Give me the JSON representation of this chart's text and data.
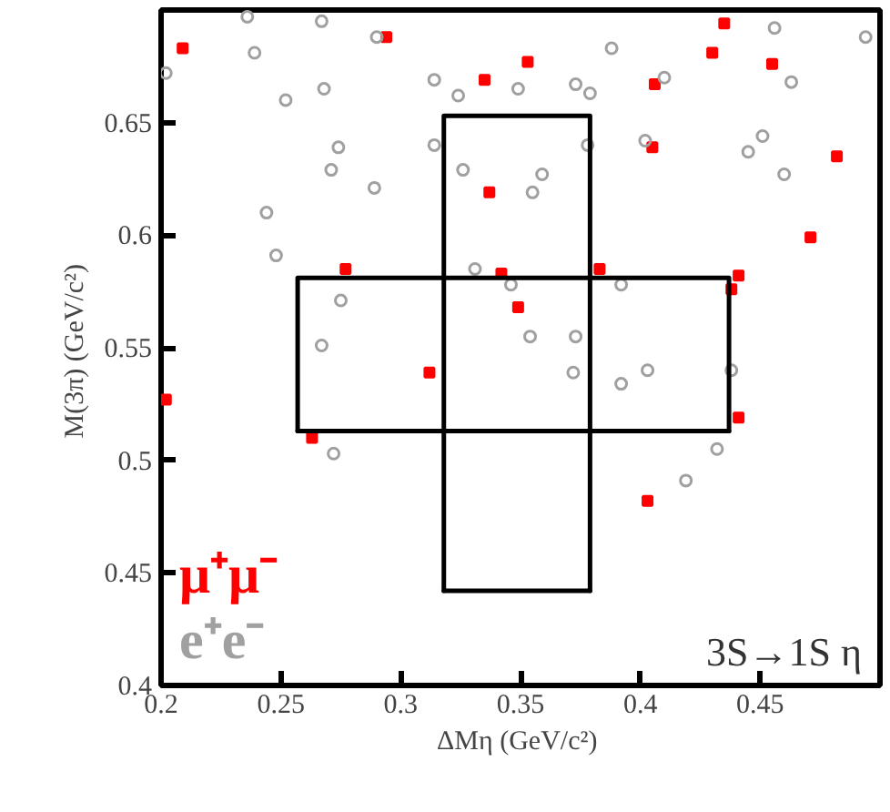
{
  "chart_data": {
    "type": "scatter",
    "xlabel": "ΔMη  (GeV/c²)",
    "ylabel": "M(3π)  (GeV/c²)",
    "xlim": [
      0.2,
      0.5
    ],
    "ylim": [
      0.4,
      0.7
    ],
    "xticks": [
      0.2,
      0.25,
      0.3,
      0.35,
      0.4,
      0.45
    ],
    "yticks": [
      0.4,
      0.45,
      0.5,
      0.55,
      0.6,
      0.65
    ],
    "grid": false,
    "legend": "bottom left",
    "annotations": [
      "3S→1S η"
    ],
    "series": [
      {
        "name": "μ⁺μ⁻",
        "color": "#ff0000",
        "marker": "square",
        "x": [
          0.209,
          0.294,
          0.335,
          0.337,
          0.277,
          0.342,
          0.349,
          0.312,
          0.353,
          0.435,
          0.43,
          0.455,
          0.406,
          0.405,
          0.482,
          0.471,
          0.383,
          0.441,
          0.438,
          0.202,
          0.263,
          0.441,
          0.403
        ],
        "values": [
          0.683,
          0.688,
          0.669,
          0.619,
          0.585,
          0.583,
          0.568,
          0.539,
          0.677,
          0.694,
          0.681,
          0.676,
          0.667,
          0.639,
          0.635,
          0.599,
          0.585,
          0.582,
          0.576,
          0.527,
          0.51,
          0.519,
          0.482
        ]
      },
      {
        "name": "e⁺e⁻",
        "color": "#a0a0a0",
        "marker": "circle",
        "x": [
          0.239,
          0.202,
          0.314,
          0.324,
          0.268,
          0.252,
          0.274,
          0.314,
          0.271,
          0.326,
          0.289,
          0.244,
          0.248,
          0.331,
          0.346,
          0.275,
          0.267,
          0.236,
          0.267,
          0.29,
          0.349,
          0.373,
          0.379,
          0.388,
          0.41,
          0.463,
          0.456,
          0.494,
          0.451,
          0.445,
          0.46,
          0.402,
          0.378,
          0.359,
          0.355,
          0.392,
          0.354,
          0.373,
          0.372,
          0.403,
          0.438,
          0.392,
          0.272,
          0.432,
          0.419
        ],
        "values": [
          0.681,
          0.672,
          0.669,
          0.662,
          0.665,
          0.66,
          0.639,
          0.64,
          0.629,
          0.629,
          0.621,
          0.61,
          0.591,
          0.585,
          0.578,
          0.571,
          0.551,
          0.697,
          0.695,
          0.688,
          0.665,
          0.667,
          0.663,
          0.683,
          0.67,
          0.668,
          0.692,
          0.688,
          0.644,
          0.637,
          0.627,
          0.642,
          0.64,
          0.627,
          0.619,
          0.578,
          0.555,
          0.555,
          0.539,
          0.54,
          0.54,
          0.534,
          0.503,
          0.505,
          0.491
        ]
      },
      {
        "type": "line",
        "color": "#000000",
        "x": [
          0.257,
          0.257,
          0.437,
          0.437
        ],
        "values": [
          0.513,
          0.581,
          0.581,
          0.513
        ]
      },
      {
        "type": "line",
        "color": "#000000",
        "x": [
          0.257,
          0.437
        ],
        "values": [
          0.513,
          0.513
        ]
      },
      {
        "type": "line",
        "color": "#000000",
        "x": [
          0.318,
          0.318,
          0.379,
          0.379
        ],
        "values": [
          0.442,
          0.653,
          0.653,
          0.442
        ]
      },
      {
        "type": "line",
        "color": "#000000",
        "x": [
          0.318,
          0.379
        ],
        "values": [
          0.442,
          0.442
        ]
      }
    ]
  }
}
